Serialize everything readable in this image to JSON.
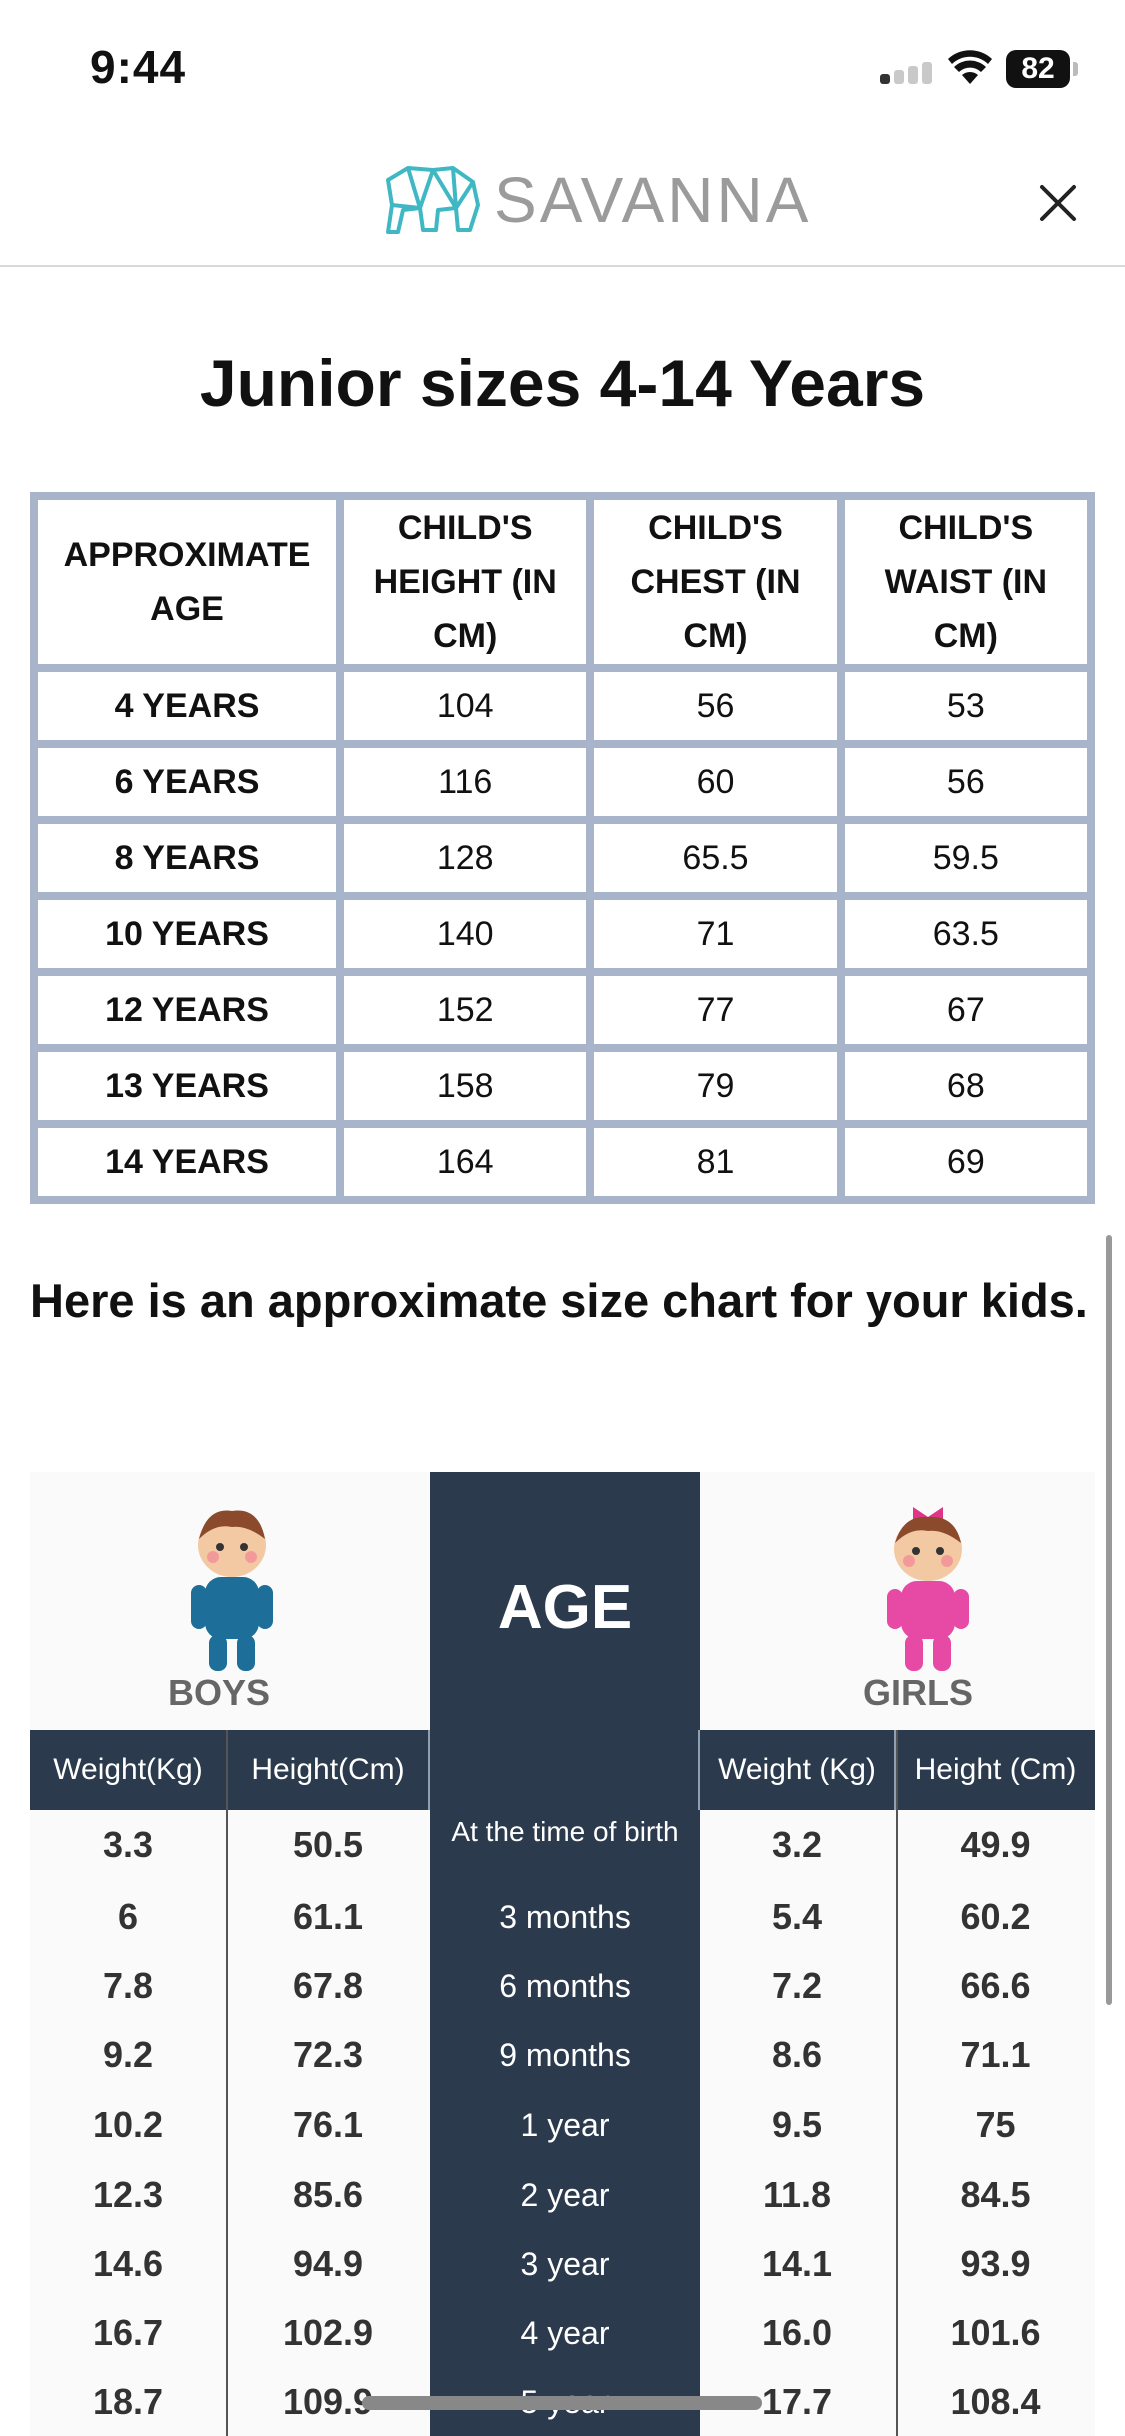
{
  "status": {
    "time": "9:44",
    "battery": "82"
  },
  "header": {
    "brand": "SAVANNA"
  },
  "page": {
    "title": "Junior sizes 4-14 Years",
    "intro": "Here is an approximate size chart for your kids."
  },
  "junior_table": {
    "headers": [
      "APPROXIMATE AGE",
      "CHILD'S HEIGHT (IN CM)",
      "CHILD'S CHEST (IN CM)",
      "CHILD'S WAIST (IN CM)"
    ],
    "rows": [
      [
        "4 YEARS",
        "104",
        "56",
        "53"
      ],
      [
        "6 YEARS",
        "116",
        "60",
        "56"
      ],
      [
        "8 YEARS",
        "128",
        "65.5",
        "59.5"
      ],
      [
        "10 YEARS",
        "140",
        "71",
        "63.5"
      ],
      [
        "12 YEARS",
        "152",
        "77",
        "67"
      ],
      [
        "13 YEARS",
        "158",
        "79",
        "68"
      ],
      [
        "14 YEARS",
        "164",
        "81",
        "69"
      ]
    ]
  },
  "infographic": {
    "boys_label": "BOYS",
    "girls_label": "GIRLS",
    "age_heading": "AGE",
    "subheaders": [
      "Weight(Kg)",
      "Height(Cm)",
      "",
      "Weight  (Kg)",
      "Height  (Cm)"
    ],
    "rows": [
      [
        "3.3",
        "50.5",
        "At the time of birth",
        "3.2",
        "49.9"
      ],
      [
        "6",
        "61.1",
        "3 months",
        "5.4",
        "60.2"
      ],
      [
        "7.8",
        "67.8",
        "6 months",
        "7.2",
        "66.6"
      ],
      [
        "9.2",
        "72.3",
        "9 months",
        "8.6",
        "71.1"
      ],
      [
        "10.2",
        "76.1",
        "1 year",
        "9.5",
        "75"
      ],
      [
        "12.3",
        "85.6",
        "2 year",
        "11.8",
        "84.5"
      ],
      [
        "14.6",
        "94.9",
        "3 year",
        "14.1",
        "93.9"
      ],
      [
        "16.7",
        "102.9",
        "4 year",
        "16.0",
        "101.6"
      ],
      [
        "18.7",
        "109.9",
        "5 year",
        "17.7",
        "108.4"
      ]
    ]
  }
}
